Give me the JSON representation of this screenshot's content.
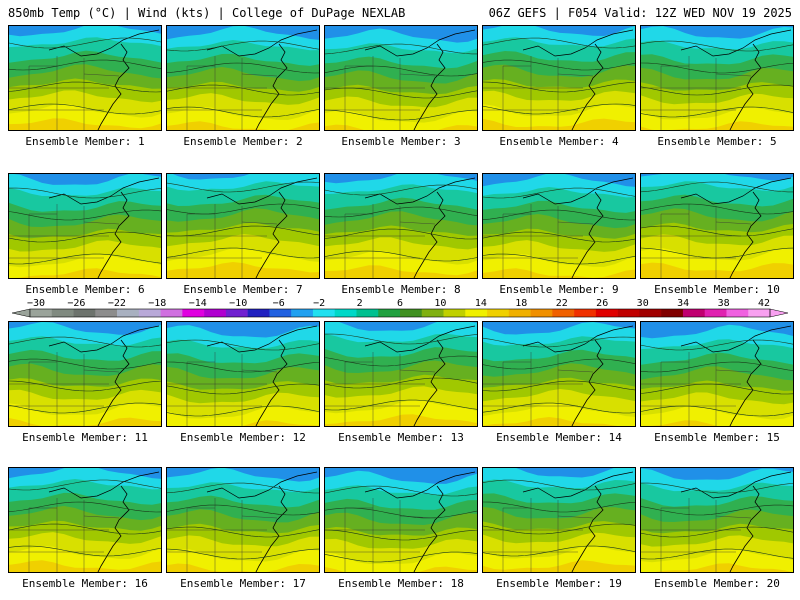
{
  "header": {
    "left": "850mb Temp (°C) | Wind (kts) | College of DuPage NEXLAB",
    "right": "06Z GEFS | F054 Valid: 12Z WED NOV 19 2025"
  },
  "members": [
    {
      "label": "Ensemble Member: 1"
    },
    {
      "label": "Ensemble Member: 2"
    },
    {
      "label": "Ensemble Member: 3"
    },
    {
      "label": "Ensemble Member: 4"
    },
    {
      "label": "Ensemble Member: 5"
    },
    {
      "label": "Ensemble Member: 6"
    },
    {
      "label": "Ensemble Member: 7"
    },
    {
      "label": "Ensemble Member: 8"
    },
    {
      "label": "Ensemble Member: 9"
    },
    {
      "label": "Ensemble Member: 10"
    },
    {
      "label": "Ensemble Member: 11"
    },
    {
      "label": "Ensemble Member: 12"
    },
    {
      "label": "Ensemble Member: 13"
    },
    {
      "label": "Ensemble Member: 14"
    },
    {
      "label": "Ensemble Member: 15"
    },
    {
      "label": "Ensemble Member: 16"
    },
    {
      "label": "Ensemble Member: 17"
    },
    {
      "label": "Ensemble Member: 18"
    },
    {
      "label": "Ensemble Member: 19"
    },
    {
      "label": "Ensemble Member: 20"
    }
  ],
  "colorbar": {
    "ticks": [
      "−30",
      "−26",
      "−22",
      "−18",
      "−14",
      "−10",
      "−6",
      "−2",
      "2",
      "6",
      "10",
      "14",
      "18",
      "22",
      "26",
      "30",
      "34",
      "38",
      "42"
    ],
    "colors": [
      "#9aa39a",
      "#808a80",
      "#6d736d",
      "#8c8c8c",
      "#a8b0c0",
      "#b8a8d8",
      "#d070e0",
      "#e000e0",
      "#b000d0",
      "#7020d0",
      "#2020c0",
      "#2060e0",
      "#20a0f0",
      "#20e0f0",
      "#00d8c8",
      "#00c090",
      "#20a040",
      "#409020",
      "#80b010",
      "#c0d000",
      "#f0f000",
      "#f0d000",
      "#f0b000",
      "#f09000",
      "#f06000",
      "#f03000",
      "#e00000",
      "#c00000",
      "#a00000",
      "#800000",
      "#c00070",
      "#e020b0",
      "#f060e0",
      "#f8a0f0"
    ]
  }
}
